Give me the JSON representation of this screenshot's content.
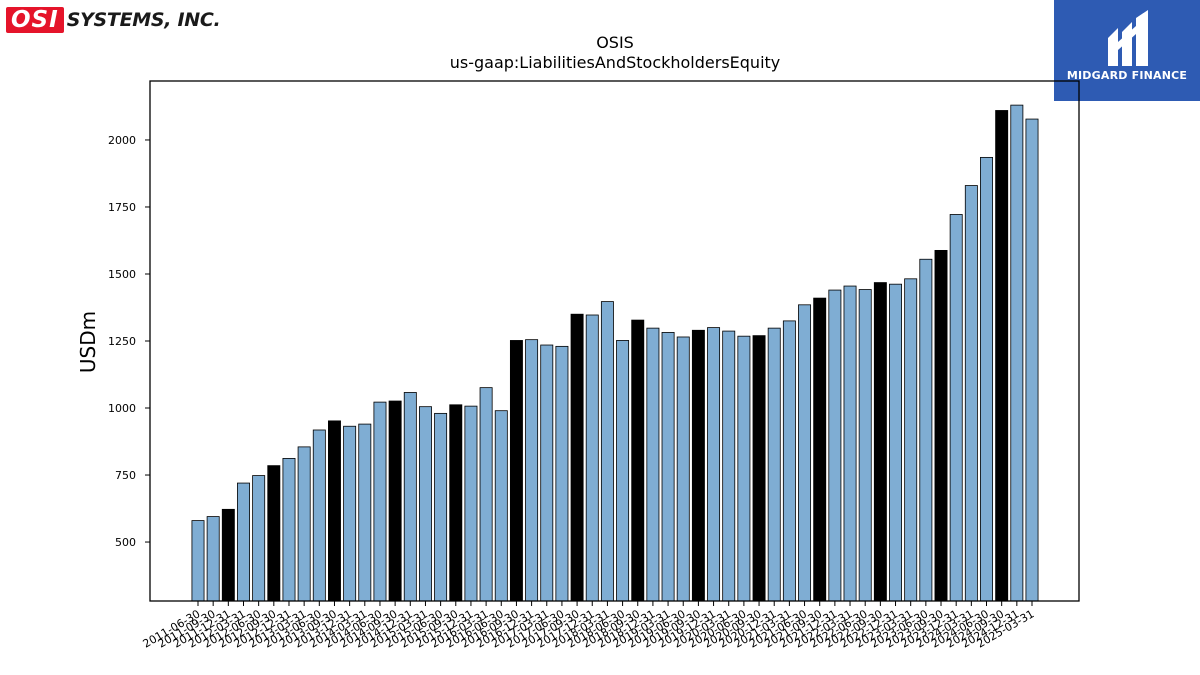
{
  "brand": {
    "logo_mark": "OSI",
    "logo_text": "SYSTEMS, INC.",
    "badge_text": "MIDGARD FINANCE"
  },
  "colors": {
    "bar": "#7fadd3",
    "bar_highlight": "#000000",
    "badge": "#2e5bb3",
    "logo": "#e5142a"
  },
  "chart_data": {
    "type": "bar",
    "title": "OSIS",
    "subtitle": "us-gaap:LiabilitiesAndStockholdersEquity",
    "xlabel": "",
    "ylabel": "USDm",
    "ylim": [
      280,
      2220
    ],
    "yticks": [
      500,
      750,
      1000,
      1250,
      1500,
      1750,
      2000
    ],
    "grid": false,
    "legend": "none",
    "categories": [
      "2011-06-30",
      "2011-09-30",
      "2011-12-31",
      "2012-03-31",
      "2012-06-30",
      "2012-09-30",
      "2012-12-31",
      "2013-03-31",
      "2013-06-30",
      "2013-09-30",
      "2013-12-31",
      "2014-03-31",
      "2014-06-30",
      "2014-09-30",
      "2014-12-31",
      "2015-03-31",
      "2015-06-30",
      "2015-09-30",
      "2015-12-31",
      "2016-03-31",
      "2016-06-30",
      "2016-09-30",
      "2016-12-31",
      "2017-03-31",
      "2017-06-30",
      "2017-09-30",
      "2017-12-31",
      "2018-03-31",
      "2018-06-30",
      "2018-09-30",
      "2018-12-31",
      "2019-03-31",
      "2019-06-30",
      "2019-09-30",
      "2019-12-31",
      "2020-03-31",
      "2020-06-30",
      "2020-09-30",
      "2020-12-31",
      "2021-03-31",
      "2021-06-30",
      "2021-09-30",
      "2021-12-31",
      "2022-03-31",
      "2022-06-30",
      "2022-09-30",
      "2022-12-31",
      "2023-03-31",
      "2023-06-30",
      "2023-09-30",
      "2023-12-31",
      "2024-03-31",
      "2024-06-30",
      "2024-09-30",
      "2024-12-31",
      "2025-03-31"
    ],
    "values": [
      580,
      595,
      622,
      720,
      748,
      785,
      812,
      855,
      918,
      952,
      932,
      940,
      1022,
      1026,
      1058,
      1005,
      980,
      1012,
      1007,
      1076,
      990,
      1252,
      1255,
      1235,
      1230,
      1350,
      1347,
      1397,
      1252,
      1328,
      1298,
      1282,
      1265,
      1290,
      1300,
      1287,
      1268,
      1270,
      1298,
      1325,
      1385,
      1410,
      1440,
      1455,
      1442,
      1468,
      1462,
      1482,
      1555,
      1588,
      1722,
      1830,
      1935,
      2110,
      2130,
      2078
    ],
    "highlighted": [
      "2011-12-31",
      "2012-09-30",
      "2013-09-30",
      "2014-09-30",
      "2015-09-30",
      "2016-09-30",
      "2017-09-30",
      "2018-09-30",
      "2019-09-30",
      "2020-09-30",
      "2021-09-30",
      "2022-09-30",
      "2023-09-30",
      "2024-09-30"
    ]
  }
}
